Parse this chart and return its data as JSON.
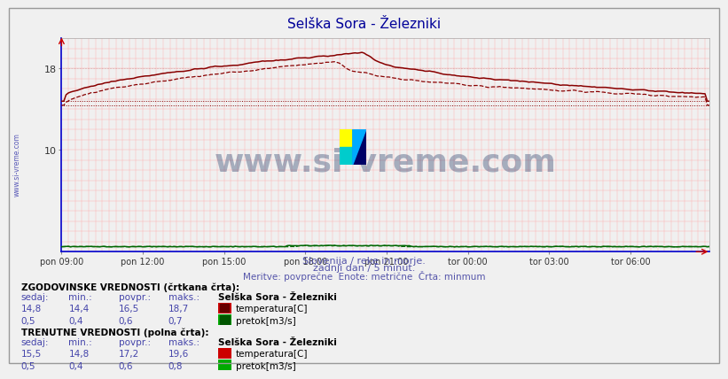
{
  "title": "Selška Sora - Železniki",
  "background_color": "#f0f0f0",
  "plot_bg_color": "#f0f0f0",
  "grid_color_v": "#ffaaaa",
  "grid_color_h": "#ffaaaa",
  "x_labels": [
    "pon 09:00",
    "pon 12:00",
    "pon 15:00",
    "pon 18:00",
    "pon 21:00",
    "tor 00:00",
    "tor 03:00",
    "tor 06:00"
  ],
  "x_ticks_pos": [
    0,
    36,
    72,
    108,
    144,
    180,
    216,
    252
  ],
  "n_points": 288,
  "ylim": [
    0,
    21
  ],
  "y_ticks": [
    10,
    18
  ],
  "temp_color": "#880000",
  "flow_color": "#006600",
  "watermark_text": "www.si-vreme.com",
  "watermark_color": "#1a3060",
  "watermark_alpha": 0.35,
  "subtitle1": "Slovenija / reke in morje.",
  "subtitle2": "zadnji dan / 5 minut.",
  "subtitle3": "Meritve: povprečne  Enote: metrične  Črta: minmum",
  "subtitle_color": "#5555aa",
  "sidebar_text": "www.si-vreme.com",
  "sidebar_color": "#3333aa",
  "hist_label": "ZGODOVINSKE VREDNOSTI (črtkana črta):",
  "curr_label": "TRENUTNE VREDNOSTI (polna črta):",
  "table_header": [
    "sedaj:",
    "min.:",
    "povpr.:",
    "maks.:"
  ],
  "hist_temp_vals": [
    "14,8",
    "14,4",
    "16,5",
    "18,7"
  ],
  "hist_flow_vals": [
    "0,5",
    "0,4",
    "0,6",
    "0,7"
  ],
  "curr_temp_vals": [
    "15,5",
    "14,8",
    "17,2",
    "19,6"
  ],
  "curr_flow_vals": [
    "0,5",
    "0,4",
    "0,6",
    "0,8"
  ],
  "station_label": "Selška Sora - Železniki",
  "temp_label": "temperatura[C]",
  "flow_label": "pretok[m3/s]",
  "temp_box_color": "#cc0000",
  "temp_box_inner": "#660000",
  "flow_box_color": "#00aa00",
  "flow_box_inner": "#005500",
  "axis_color": "#0000cc",
  "title_color": "#000099",
  "label_color": "#000000",
  "value_color": "#4444aa"
}
